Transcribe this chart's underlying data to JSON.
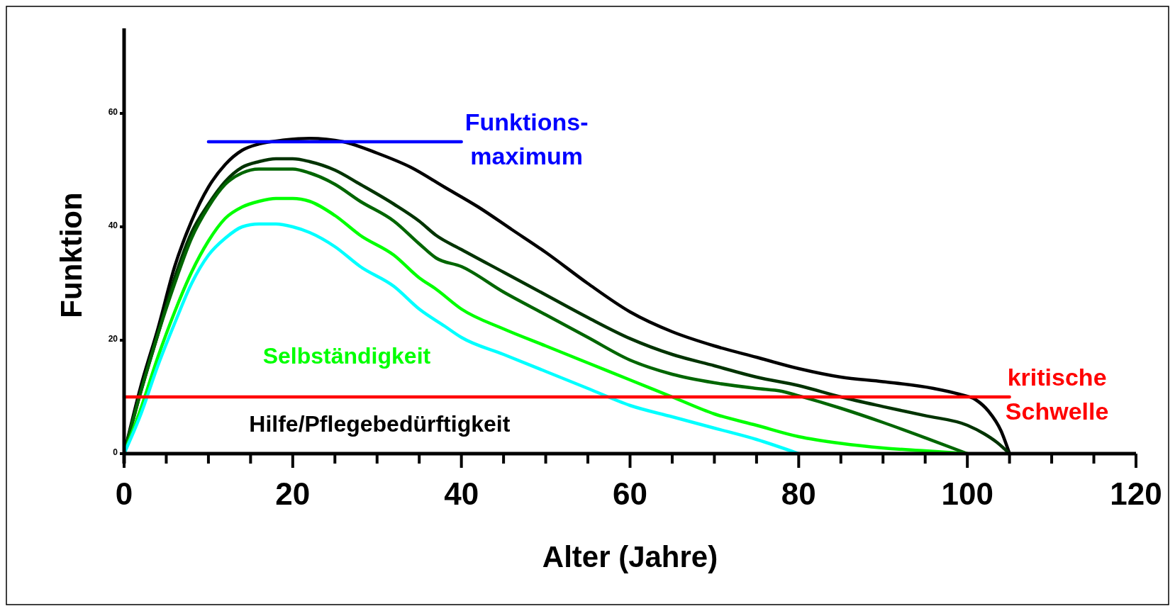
{
  "chart_data": {
    "type": "line",
    "xlabel": "Alter (Jahre)",
    "ylabel": "Funktion",
    "xlim": [
      0,
      120
    ],
    "ylim": [
      0,
      75
    ],
    "xticks": [
      0,
      {
        "value": 5,
        "label": null
      },
      {
        "value": 10,
        "label": null
      },
      {
        "value": 15,
        "label": null
      },
      20,
      {
        "value": 25,
        "label": null
      },
      {
        "value": 30,
        "label": null
      },
      {
        "value": 35,
        "label": null
      },
      40,
      {
        "value": 45,
        "label": null
      },
      {
        "value": 50,
        "label": null
      },
      {
        "value": 55,
        "label": null
      },
      60,
      {
        "value": 65,
        "label": null
      },
      {
        "value": 70,
        "label": null
      },
      {
        "value": 75,
        "label": null
      },
      80,
      {
        "value": 85,
        "label": null
      },
      {
        "value": 90,
        "label": null
      },
      {
        "value": 95,
        "label": null
      },
      100,
      {
        "value": 105,
        "label": null
      },
      {
        "value": 110,
        "label": null
      },
      {
        "value": 115,
        "label": null
      },
      120
    ],
    "yticks": [
      0,
      20,
      40,
      60
    ],
    "grid": false,
    "marker": "none",
    "line_style": "solid",
    "series": [
      {
        "color": "#000000",
        "x": [
          0,
          2,
          4,
          6,
          8,
          10,
          12,
          14,
          16,
          19,
          22,
          26,
          30,
          34,
          38,
          42,
          46,
          50,
          55,
          60,
          65,
          70,
          75,
          80,
          85,
          90,
          96,
          99,
          101,
          102.5,
          104,
          105
        ],
        "values": [
          0,
          12,
          22,
          33,
          41,
          47,
          51,
          53.5,
          54.6,
          55.3,
          55.6,
          55,
          53,
          50.5,
          47,
          43.5,
          39.5,
          35.5,
          30,
          25,
          21.5,
          19,
          17,
          15,
          13.5,
          12.7,
          11.5,
          10.5,
          9.5,
          7.5,
          4,
          0
        ]
      },
      {
        "color": "#003300",
        "x": [
          0,
          2,
          4,
          6,
          8,
          10,
          12,
          14,
          16,
          18,
          20,
          22,
          25,
          28,
          32,
          35,
          37,
          40,
          45,
          50,
          55,
          60,
          65,
          70,
          75,
          80,
          85,
          90,
          95,
          100,
          102,
          103.5,
          105
        ],
        "values": [
          0,
          11,
          21,
          31,
          39,
          44,
          48,
          50.5,
          51.5,
          52,
          52,
          51.5,
          50,
          47.5,
          44,
          41,
          38.5,
          36,
          32,
          28,
          24,
          20.3,
          17.5,
          15.5,
          13.5,
          12,
          10,
          8.3,
          6.7,
          5,
          3.5,
          2,
          0
        ]
      },
      {
        "color": "#006600",
        "x": [
          0,
          2,
          4,
          6,
          8,
          10,
          12,
          14,
          16,
          20,
          22,
          25,
          28,
          32,
          35,
          37,
          40,
          45,
          50,
          55,
          60,
          65,
          70,
          75,
          78,
          80,
          85,
          90,
          95,
          100
        ],
        "values": [
          0,
          11,
          21,
          30,
          38,
          43.5,
          47.5,
          49.5,
          50.2,
          50.2,
          49.5,
          47.5,
          44.5,
          41,
          37,
          34.5,
          33,
          28.5,
          24.5,
          20.5,
          16.5,
          14,
          12.5,
          11.5,
          11,
          10.2,
          8,
          5.5,
          2.8,
          0
        ]
      },
      {
        "color": "#00ff00",
        "x": [
          0,
          2,
          4,
          6,
          8,
          10,
          12,
          14,
          16,
          18,
          20,
          22,
          25,
          28,
          32,
          35,
          37,
          40,
          45,
          50,
          55,
          60,
          65,
          70,
          75,
          80,
          85,
          90,
          95,
          100
        ],
        "values": [
          0,
          8,
          17,
          25,
          32,
          37.5,
          41.5,
          43.5,
          44.5,
          45,
          45,
          44.5,
          42,
          38.5,
          35,
          31,
          29,
          25.5,
          22,
          19,
          16,
          13,
          10,
          7,
          5,
          3,
          1.8,
          1,
          0.5,
          0
        ]
      },
      {
        "color": "#00ffff",
        "x": [
          0,
          2,
          4,
          6,
          8,
          10,
          12,
          14,
          16,
          18,
          20,
          22,
          25,
          28,
          32,
          35,
          38,
          40,
          45,
          50,
          55,
          60,
          65,
          70,
          75,
          80
        ],
        "values": [
          0,
          7,
          15.5,
          23,
          30,
          35,
          38,
          40,
          40.5,
          40.5,
          40,
          39,
          36.5,
          33,
          29.5,
          25.5,
          22.5,
          20.5,
          17.5,
          14.5,
          11.5,
          8.5,
          6.5,
          4.5,
          2.5,
          0
        ]
      },
      {
        "name": "Funktions-\nmaximum",
        "color": "#0000ff",
        "x": [
          10,
          40
        ],
        "values": [
          55,
          55
        ]
      },
      {
        "name": "kritische\nSchwelle",
        "color": "#ff0000",
        "x": [
          0,
          105
        ],
        "values": [
          10,
          10
        ]
      }
    ],
    "annotations": [
      "Selbständigkeit",
      "Hilfe/Pflegebedürftigkeit"
    ]
  }
}
